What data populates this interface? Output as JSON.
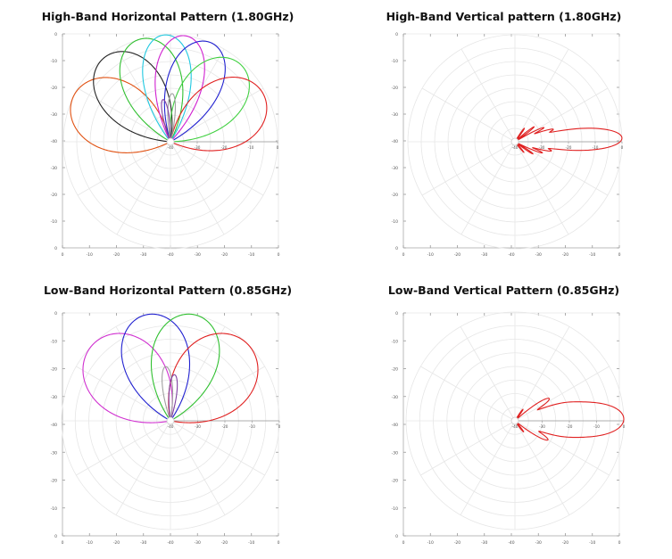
{
  "chart_data": [
    {
      "type": "polar-line",
      "title": "High-Band Horizontal Pattern (1.80GHz)",
      "radial_range_db": [
        -40,
        0
      ],
      "radial_ticks": [
        "-40",
        "-30",
        "-20",
        "-10",
        "0"
      ],
      "frame_y_ticks": [
        "0",
        "-10",
        "-20",
        "-30",
        "-40",
        "-30",
        "-20",
        "-10",
        "0"
      ],
      "frame_x_ticks": [
        "0",
        "-10",
        "-20",
        "-30",
        "-40",
        "-30",
        "-20",
        "-10",
        "0"
      ],
      "grid": true,
      "series": [
        {
          "color": "#e05010",
          "main_lobe_deg": 155,
          "peak_db": 0,
          "width_deg": 24,
          "sidelobes": [
            [
              168,
              -30,
              6
            ],
            [
              140,
              -34,
              5
            ]
          ]
        },
        {
          "color": "#222222",
          "main_lobe_deg": 128,
          "peak_db": 0,
          "width_deg": 22,
          "sidelobes": [
            [
              112,
              -30,
              5
            ],
            [
              150,
              -33,
              5
            ]
          ]
        },
        {
          "color": "#30c030",
          "main_lobe_deg": 107,
          "peak_db": 0,
          "width_deg": 20,
          "sidelobes": [
            [
              90,
              -30,
              5
            ],
            [
              125,
              -32,
              5
            ]
          ]
        },
        {
          "color": "#20c8e0",
          "main_lobe_deg": 93,
          "peak_db": 0,
          "width_deg": 16,
          "sidelobes": [
            [
              80,
              -32,
              5
            ]
          ]
        },
        {
          "color": "#d020d0",
          "main_lobe_deg": 82,
          "peak_db": 0,
          "width_deg": 16,
          "sidelobes": [
            [
              97,
              -31,
              5
            ]
          ]
        },
        {
          "color": "#2020d0",
          "main_lobe_deg": 68,
          "peak_db": 0,
          "width_deg": 18,
          "sidelobes": [
            [
              55,
              -32,
              5
            ]
          ]
        },
        {
          "color": "#40d040",
          "main_lobe_deg": 48,
          "peak_db": -1,
          "width_deg": 22,
          "sidelobes": [
            [
              60,
              -30,
              5
            ]
          ]
        },
        {
          "color": "#e02020",
          "main_lobe_deg": 27,
          "peak_db": -1,
          "width_deg": 24,
          "sidelobes": [
            [
              40,
              -31,
              5
            ],
            [
              10,
              -34,
              5
            ]
          ]
        },
        {
          "color": "#a0a0a0",
          "main_lobe_deg": 88,
          "peak_db": -22,
          "width_deg": 8,
          "sidelobes": []
        },
        {
          "color": "#8040a0",
          "main_lobe_deg": 100,
          "peak_db": -24,
          "width_deg": 8,
          "sidelobes": []
        }
      ]
    },
    {
      "type": "polar-line",
      "title": "High-Band Vertical pattern (1.80GHz)",
      "radial_range_db": [
        -40,
        0
      ],
      "radial_ticks": [
        "-40",
        "-30",
        "-20",
        "-10",
        "0"
      ],
      "frame_y_ticks": [
        "0",
        "-10",
        "-20",
        "-30",
        "-40",
        "-30",
        "-20",
        "-10",
        "0"
      ],
      "frame_x_ticks": [
        "0",
        "-10",
        "-20",
        "-30",
        "-40",
        "-30",
        "-20",
        "-10",
        "0"
      ],
      "grid": true,
      "series": [
        {
          "color": "#e02020",
          "main_lobe_deg": 2,
          "peak_db": 0,
          "width_deg": 7,
          "sidelobes": [
            [
              10,
              -21,
              4
            ],
            [
              18,
              -25,
              4
            ],
            [
              26,
              -28,
              4
            ],
            [
              38,
              -31,
              4
            ],
            [
              55,
              -34,
              5
            ],
            [
              -6,
              -22,
              4
            ],
            [
              -14,
              -26,
              4
            ],
            [
              -22,
              -29,
              4
            ],
            [
              -34,
              -32,
              4
            ],
            [
              -50,
              -35,
              5
            ]
          ]
        }
      ]
    },
    {
      "type": "polar-line",
      "title": "Low-Band Horizontal Pattern (0.85GHz)",
      "radial_range_db": [
        -40,
        0
      ],
      "radial_ticks": [
        "-40",
        "-30",
        "-20",
        "-10",
        "0"
      ],
      "frame_y_ticks": [
        "0",
        "-10",
        "-20",
        "-30",
        "-40",
        "-30",
        "-20",
        "-10",
        "0"
      ],
      "frame_x_ticks": [
        "0",
        "-10",
        "-20",
        "-30",
        "-40",
        "-30",
        "-20",
        "-10",
        "0"
      ],
      "grid": true,
      "series": [
        {
          "color": "#d030d0",
          "main_lobe_deg": 135,
          "peak_db": 0,
          "width_deg": 26,
          "sidelobes": [
            [
              160,
              -34,
              6
            ],
            [
              108,
              -28,
              6
            ]
          ]
        },
        {
          "color": "#2020d0",
          "main_lobe_deg": 103,
          "peak_db": 0,
          "width_deg": 22,
          "sidelobes": [
            [
              125,
              -27,
              6
            ],
            [
              80,
              -30,
              6
            ]
          ]
        },
        {
          "color": "#30c030",
          "main_lobe_deg": 77,
          "peak_db": 0,
          "width_deg": 22,
          "sidelobes": [
            [
              55,
              -27,
              6
            ],
            [
              100,
              -30,
              6
            ]
          ]
        },
        {
          "color": "#e02020",
          "main_lobe_deg": 45,
          "peak_db": 0,
          "width_deg": 26,
          "sidelobes": [
            [
              20,
              -33,
              6
            ],
            [
              70,
              -28,
              6
            ]
          ]
        },
        {
          "color": "#a0a0a0",
          "main_lobe_deg": 95,
          "peak_db": -20,
          "width_deg": 9,
          "sidelobes": []
        },
        {
          "color": "#8040a0",
          "main_lobe_deg": 85,
          "peak_db": -23,
          "width_deg": 9,
          "sidelobes": []
        }
      ]
    },
    {
      "type": "polar-line",
      "title": "Low-Band Vertical Pattern (0.85GHz)",
      "radial_range_db": [
        -40,
        0
      ],
      "radial_ticks": [
        "-40",
        "-30",
        "-20",
        "-10",
        "0"
      ],
      "frame_y_ticks": [
        "0",
        "-10",
        "-20",
        "-30",
        "-40",
        "-30",
        "-20",
        "-10",
        "0"
      ],
      "frame_x_ticks": [
        "0",
        "-10",
        "-20",
        "-30",
        "-40",
        "-30",
        "-20",
        "-10",
        "0"
      ],
      "grid": true,
      "series": [
        {
          "color": "#e02020",
          "main_lobe_deg": 1,
          "peak_db": 0,
          "width_deg": 11,
          "sidelobes": [
            [
              17,
              -20,
              7
            ],
            [
              33,
              -25,
              7
            ],
            [
              -15,
              -21,
              7
            ],
            [
              -30,
              -26,
              7
            ],
            [
              55,
              -35,
              6
            ],
            [
              -52,
              -35,
              6
            ]
          ]
        }
      ]
    }
  ]
}
